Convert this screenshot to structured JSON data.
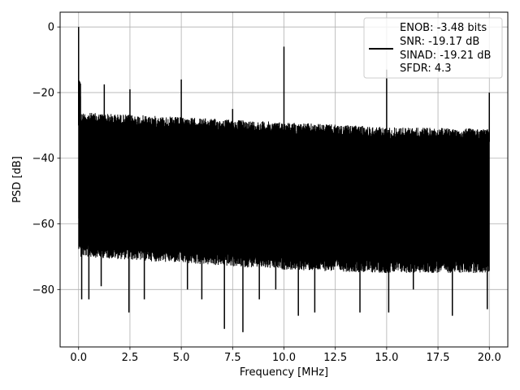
{
  "chart_data": {
    "type": "line",
    "title": "",
    "xlabel": "Frequency [MHz]",
    "ylabel": "PSD [dB]",
    "xlim": [
      -0.9,
      20.9
    ],
    "ylim": [
      -97.5,
      4.5
    ],
    "grid": true,
    "legend_position": "upper right",
    "x_ticks": [
      0,
      2.5,
      5,
      7.5,
      10,
      12.5,
      15,
      17.5,
      20
    ],
    "x_tick_labels": [
      "0.0",
      "2.5",
      "5.0",
      "7.5",
      "10.0",
      "12.5",
      "15.0",
      "17.5",
      "20.0"
    ],
    "y_ticks": [
      0,
      -20,
      -40,
      -60,
      -80
    ],
    "y_tick_labels": [
      "0",
      "−20",
      "−40",
      "−60",
      "−80"
    ],
    "series": [
      {
        "name": "",
        "color": "#000000",
        "legend_lines": [
          "ENOB: -3.48 bits",
          "SNR: -19.17 dB",
          "SINAD: -19.21 dB",
          "SFDR: 4.3"
        ],
        "noise_ceiling": [
          [
            0.1,
            -26
          ],
          [
            5,
            -27.5
          ],
          [
            10,
            -29
          ],
          [
            15,
            -30.5
          ],
          [
            20,
            -31
          ]
        ],
        "noise_floor": [
          [
            0.1,
            -66
          ],
          [
            5,
            -68
          ],
          [
            10,
            -70
          ],
          [
            15,
            -71
          ],
          [
            20,
            -71
          ]
        ],
        "spurs": [
          {
            "x": 0.0,
            "y": 0.0
          },
          {
            "x": 1.25,
            "y": -17.5
          },
          {
            "x": 2.5,
            "y": -19
          },
          {
            "x": 5.0,
            "y": -16
          },
          {
            "x": 7.5,
            "y": -25
          },
          {
            "x": 10.0,
            "y": -6
          },
          {
            "x": 15.0,
            "y": -13
          },
          {
            "x": 20.0,
            "y": -20
          }
        ],
        "dips": [
          {
            "x": 0.15,
            "y": -83
          },
          {
            "x": 0.5,
            "y": -83
          },
          {
            "x": 1.1,
            "y": -79
          },
          {
            "x": 2.45,
            "y": -87
          },
          {
            "x": 3.2,
            "y": -83
          },
          {
            "x": 5.3,
            "y": -80
          },
          {
            "x": 6.0,
            "y": -83
          },
          {
            "x": 7.1,
            "y": -92
          },
          {
            "x": 8.0,
            "y": -93
          },
          {
            "x": 8.8,
            "y": -83
          },
          {
            "x": 9.6,
            "y": -80
          },
          {
            "x": 10.7,
            "y": -88
          },
          {
            "x": 11.5,
            "y": -87
          },
          {
            "x": 13.7,
            "y": -87
          },
          {
            "x": 15.1,
            "y": -87
          },
          {
            "x": 16.3,
            "y": -80
          },
          {
            "x": 18.2,
            "y": -88
          },
          {
            "x": 19.9,
            "y": -86
          }
        ]
      }
    ]
  }
}
